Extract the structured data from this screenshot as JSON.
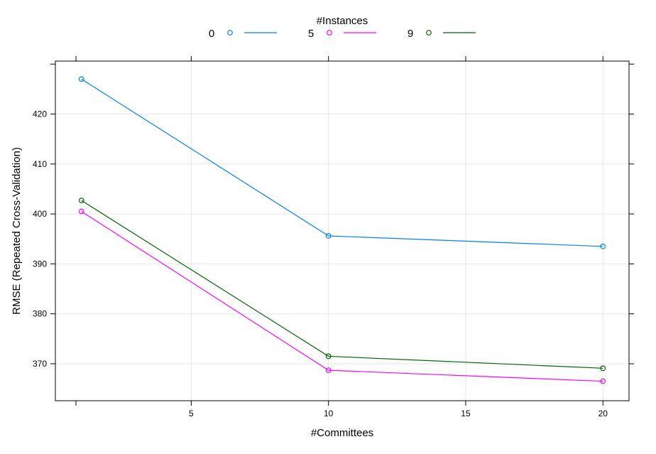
{
  "chart_data": {
    "type": "line",
    "title": "",
    "xlabel": "#Committees",
    "ylabel": "RMSE (Repeated Cross-Validation)",
    "legend_title": "#Instances",
    "legend_position": "top",
    "grid": true,
    "xlim": [
      0.05,
      20.95
    ],
    "ylim": [
      362.6,
      430.6
    ],
    "x_ticks": [
      5,
      10,
      15,
      20
    ],
    "y_ticks": [
      370,
      380,
      390,
      400,
      410,
      420
    ],
    "x": [
      1,
      10,
      20
    ],
    "series": [
      {
        "name": "0",
        "color": "#0080ff",
        "values": [
          427.0,
          395.6,
          393.5
        ]
      },
      {
        "name": "5",
        "color": "#ff00ff",
        "values": [
          400.5,
          368.7,
          366.5
        ]
      },
      {
        "name": "9",
        "color": "#006400",
        "values": [
          402.7,
          371.5,
          369.1
        ]
      }
    ]
  }
}
